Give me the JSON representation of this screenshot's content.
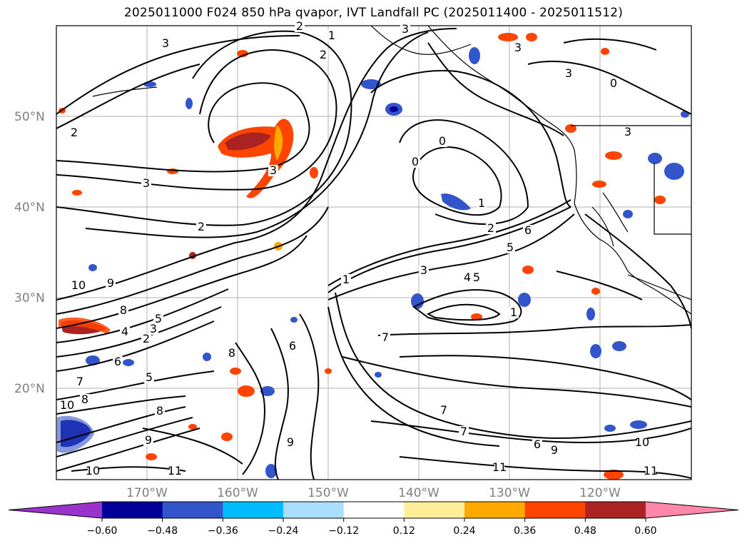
{
  "title": "2025011000 F024 850 hPa qvapor, IVT Landfall PC (2025011400 - 2025011512)",
  "map": {
    "lat_labels": [
      "50°N",
      "40°N",
      "30°N",
      "20°N"
    ],
    "lon_labels": [
      "170°W",
      "160°W",
      "150°W",
      "140°W",
      "130°W",
      "120°W"
    ],
    "contour_labels": [
      "1",
      "2",
      "3",
      "2",
      "2",
      "3",
      "3",
      "3",
      "3",
      "3",
      "0",
      "0",
      "0",
      "1",
      "2",
      "2",
      "5",
      "6",
      "3",
      "4",
      "5",
      "1",
      "1",
      "7",
      "8",
      "10",
      "9",
      "8",
      "4",
      "5",
      "3",
      "2",
      "6",
      "5",
      "6",
      "7",
      "8",
      "9",
      "10",
      "11",
      "8",
      "9",
      "10",
      "7",
      "7",
      "6",
      "9",
      "10",
      "11",
      "11",
      "3"
    ],
    "grid": true,
    "coastlines": true
  },
  "colorbar": {
    "ticks": [
      "−0.60",
      "−0.48",
      "−0.36",
      "−0.24",
      "−0.12",
      "0.12",
      "0.24",
      "0.36",
      "0.48",
      "0.60"
    ],
    "extend": "both",
    "colors": [
      "#9933cc",
      "#000099",
      "#3355cc",
      "#00bbff",
      "#aaddff",
      "#ffffff",
      "#ffee99",
      "#ffaa00",
      "#ff4400",
      "#aa2222",
      "#ff88aa"
    ]
  }
}
